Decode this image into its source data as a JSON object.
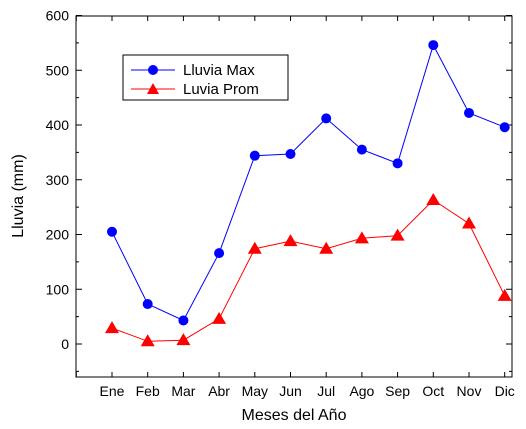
{
  "chart_data": {
    "type": "line",
    "title": "",
    "xlabel": "Meses del Año",
    "ylabel": "Lluvia (mm)",
    "ylim": [
      -60,
      600
    ],
    "yticks": [
      0,
      100,
      200,
      300,
      400,
      500,
      600
    ],
    "categories": [
      "Ene",
      "Feb",
      "Mar",
      "Abr",
      "May",
      "Jun",
      "Jul",
      "Ago",
      "Sep",
      "Oct",
      "Nov",
      "Dic"
    ],
    "grid": false,
    "legend_position": "top-left",
    "series": [
      {
        "name": "Lluvia Max",
        "color": "#0000ff",
        "marker": "circle",
        "values": [
          205,
          73,
          43,
          166,
          344,
          347,
          412,
          355,
          330,
          546,
          422,
          396
        ]
      },
      {
        "name": "Luvia Prom",
        "color": "#ff0000",
        "marker": "triangle",
        "values": [
          29,
          5,
          7,
          46,
          174,
          188,
          174,
          193,
          198,
          263,
          220,
          88
        ]
      }
    ]
  }
}
